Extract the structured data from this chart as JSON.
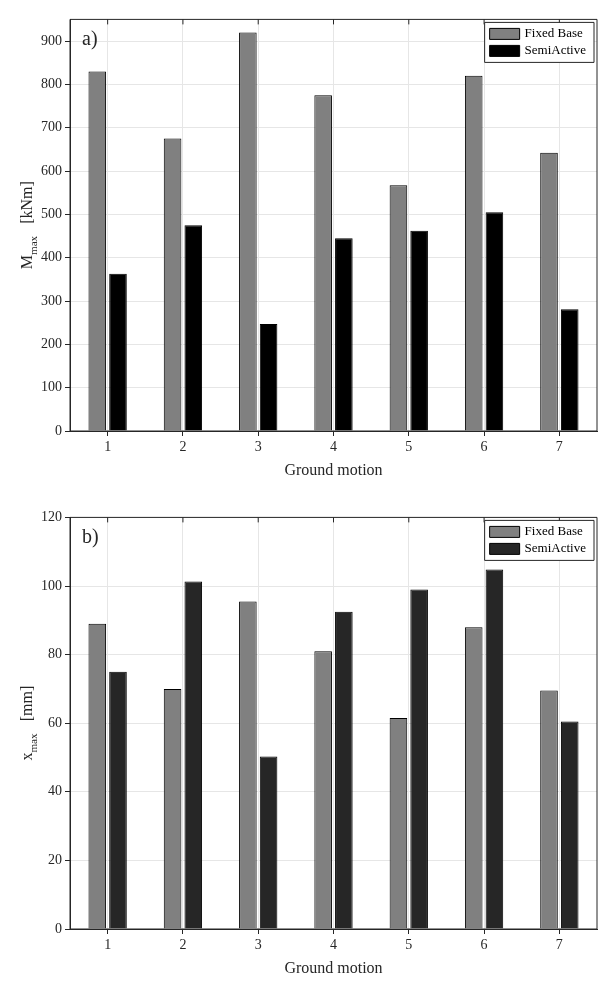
{
  "chart_data": [
    {
      "type": "bar",
      "annotations": [
        "a)"
      ],
      "xlabel": "Ground motion",
      "ylabel": "M$_{max}$   [kNm]",
      "categories": [
        "1",
        "2",
        "3",
        "4",
        "5",
        "6",
        "7"
      ],
      "series": [
        {
          "name": "Fixed Base",
          "color": "#808080",
          "values": [
            830,
            675,
            920,
            775,
            567,
            820,
            642
          ]
        },
        {
          "name": "SemiActive",
          "color": "#000000",
          "values": [
            363,
            475,
            247,
            445,
            462,
            505,
            281
          ]
        }
      ],
      "ylim": [
        0,
        950
      ],
      "yticks": [
        0,
        100,
        200,
        300,
        400,
        500,
        600,
        700,
        800,
        900
      ],
      "grid": true,
      "legend": "top right"
    },
    {
      "type": "bar",
      "annotations": [
        "b)"
      ],
      "xlabel": "Ground motion",
      "ylabel": "x$_{max}$   [mm]",
      "categories": [
        "1",
        "2",
        "3",
        "4",
        "5",
        "6",
        "7"
      ],
      "series": [
        {
          "name": "Fixed Base",
          "color": "#808080",
          "values": [
            89,
            70,
            95.5,
            81,
            61.5,
            88,
            69.5
          ]
        },
        {
          "name": "SemiActive",
          "color": "#262626",
          "values": [
            75,
            101.3,
            50.3,
            92.5,
            99,
            104.8,
            60.5
          ]
        }
      ],
      "ylim": [
        0,
        120
      ],
      "yticks": [
        0,
        20,
        40,
        60,
        80,
        100,
        120
      ],
      "grid": true,
      "legend": "top right"
    }
  ]
}
